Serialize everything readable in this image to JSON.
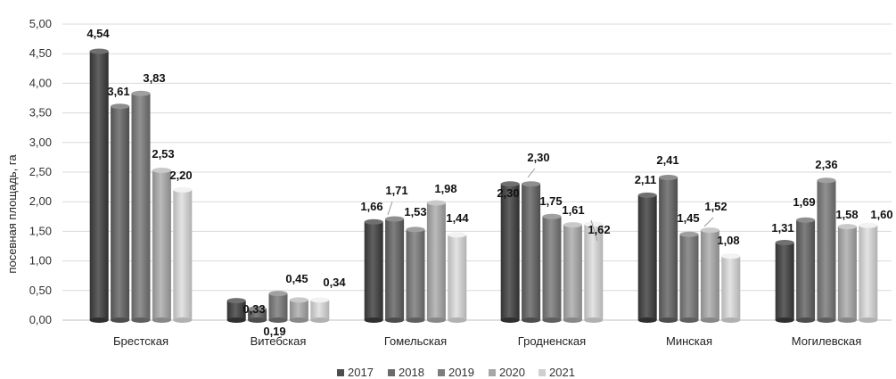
{
  "chart_data": {
    "type": "bar",
    "title": "",
    "xlabel": "",
    "ylabel": "посевная площадь, га",
    "ylim": [
      0,
      5
    ],
    "y_ticks": [
      "0,00",
      "0,50",
      "1,00",
      "1,50",
      "2,00",
      "2,50",
      "3,00",
      "3,50",
      "4,00",
      "4,50",
      "5,00"
    ],
    "grid": true,
    "legend_position": "bottom",
    "categories": [
      "Брестская",
      "Витебская",
      "Гомельская",
      "Гродненская",
      "Минская",
      "Могилевская"
    ],
    "series": [
      {
        "name": "2017",
        "color": "#4d4d4d",
        "values": [
          4.54,
          0.33,
          1.66,
          2.3,
          2.11,
          1.31
        ],
        "labels": [
          "4,54",
          "0,33",
          "1,66",
          "2,30",
          "2,11",
          "1,31"
        ]
      },
      {
        "name": "2018",
        "color": "#6b6b6b",
        "values": [
          3.61,
          0.19,
          1.71,
          2.3,
          2.41,
          1.69
        ],
        "labels": [
          "3,61",
          "0,19",
          "1,71",
          "2,30",
          "2,41",
          "1,69"
        ]
      },
      {
        "name": "2019",
        "color": "#7d7d7d",
        "values": [
          3.83,
          0.45,
          1.53,
          1.75,
          1.45,
          2.36
        ],
        "labels": [
          "3,83",
          "0,45",
          "1,53",
          "1,75",
          "1,45",
          "2,36"
        ]
      },
      {
        "name": "2020",
        "color": "#a6a6a6",
        "values": [
          2.53,
          0.34,
          1.98,
          1.61,
          1.52,
          1.58
        ],
        "labels": [
          "2,53",
          "0,34",
          "1,98",
          "1,61",
          "1,52",
          "1,58"
        ]
      },
      {
        "name": "2021",
        "color": "#cfcfcf",
        "values": [
          2.2,
          0.34,
          1.44,
          1.62,
          1.08,
          1.6
        ],
        "labels": [
          "2,20",
          "",
          "1,44",
          "1,62",
          "1,08",
          "1,60"
        ]
      }
    ]
  }
}
